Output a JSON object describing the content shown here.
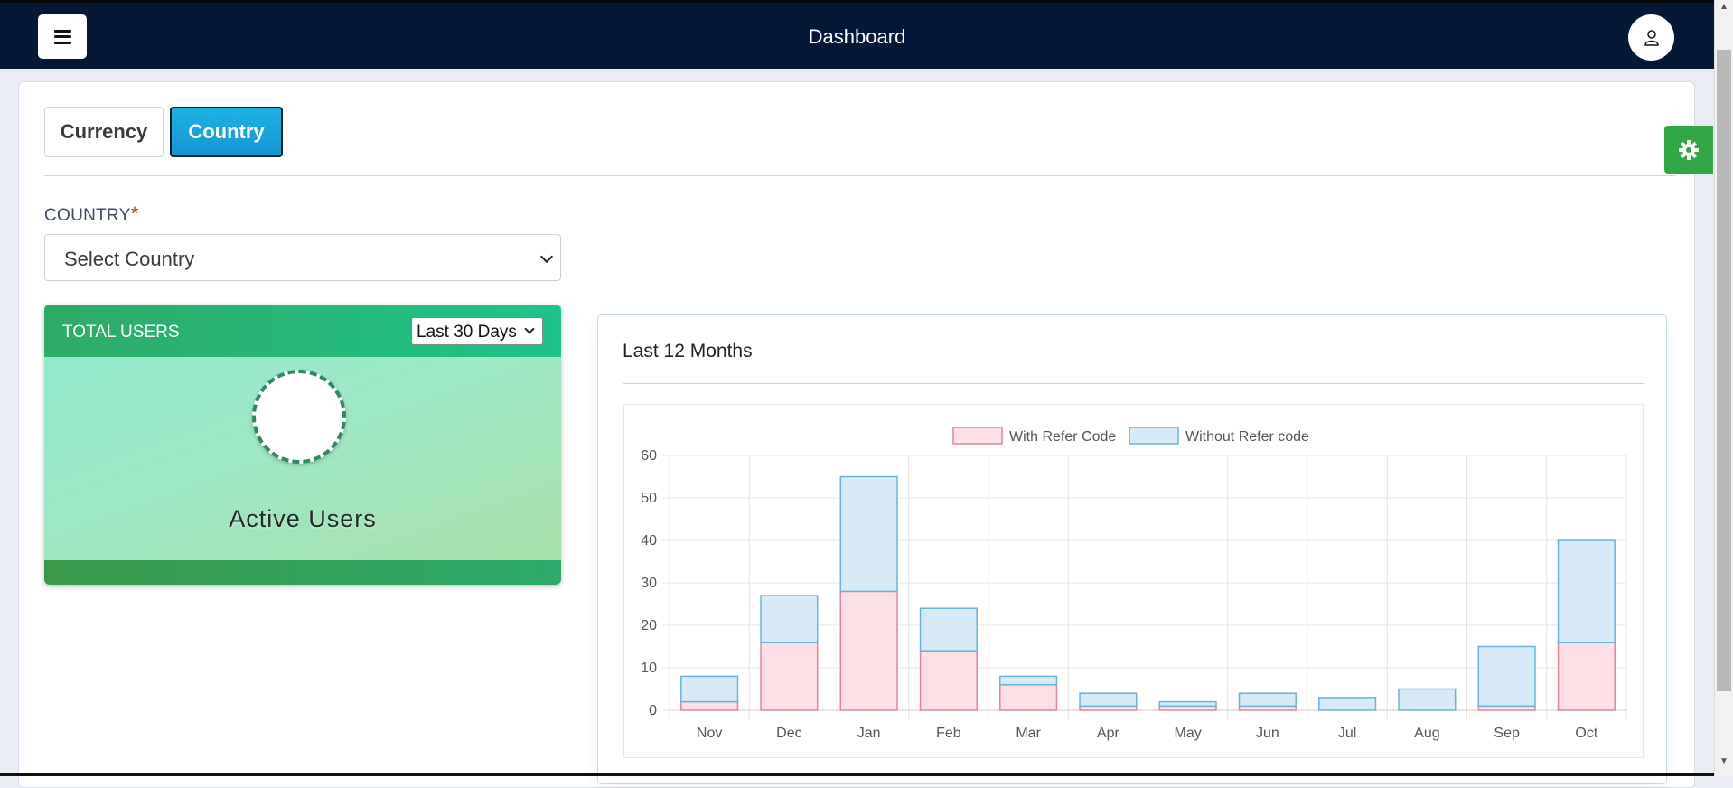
{
  "header": {
    "title": "Dashboard",
    "menu_icon": "hamburger-icon",
    "user_icon": "user-icon"
  },
  "tabs": [
    {
      "label": "Currency",
      "active": false
    },
    {
      "label": "Country",
      "active": true
    }
  ],
  "filter": {
    "country_label": "COUNTRY",
    "required_mark": "*",
    "country_select": "Select Country"
  },
  "users_card": {
    "title": "TOTAL USERS",
    "period": "Last 30 Days",
    "subtitle": "Active Users"
  },
  "chart_card": {
    "title": "Last 12 Months"
  },
  "settings_icon": "gear-icon",
  "colors": {
    "header_bg": "#061838",
    "accent_blue": "#1aa5da",
    "success_green": "#2fa845",
    "series1_fill": "#fde0e6",
    "series1_stroke": "#e6829a",
    "series2_fill": "#d6ebf7",
    "series2_stroke": "#6ab2de"
  },
  "chart_data": {
    "type": "bar",
    "stacked": true,
    "title": "",
    "xlabel": "",
    "ylabel": "",
    "categories": [
      "Nov",
      "Dec",
      "Jan",
      "Feb",
      "Mar",
      "Apr",
      "May",
      "Jun",
      "Jul",
      "Aug",
      "Sep",
      "Oct"
    ],
    "series": [
      {
        "name": "With Refer Code",
        "values": [
          2,
          16,
          28,
          14,
          6,
          1,
          1,
          1,
          0,
          0,
          1,
          16
        ]
      },
      {
        "name": "Without Refer code",
        "values": [
          6,
          11,
          27,
          10,
          2,
          3,
          1,
          3,
          3,
          5,
          14,
          24
        ]
      }
    ],
    "ylim": [
      0,
      60
    ],
    "yticks": [
      0,
      10,
      20,
      30,
      40,
      50,
      60
    ],
    "legend": "top",
    "grid": true
  }
}
